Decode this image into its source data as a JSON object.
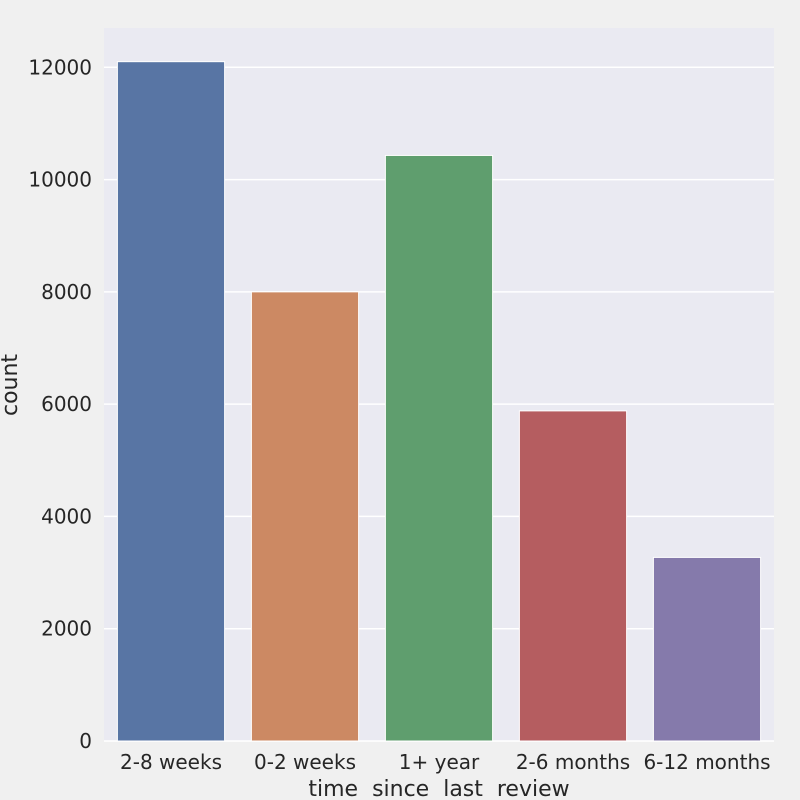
{
  "chart_data": {
    "type": "bar",
    "categories": [
      "2-8 weeks",
      "0-2 weeks",
      "1+ year",
      "2-6 months",
      "6-12 months"
    ],
    "values": [
      12100,
      8000,
      10430,
      5880,
      3270
    ],
    "xlabel": "time  since  last  review",
    "ylabel": "count",
    "ylim": [
      0,
      12700
    ],
    "yticks": [
      0,
      2000,
      4000,
      6000,
      8000,
      10000,
      12000
    ],
    "grid": true,
    "colors": [
      "#5875a4",
      "#cc8963",
      "#5f9e6e",
      "#b55d60",
      "#857aab"
    ],
    "background": "#eaeaf2",
    "page_background": "#f0f0f0",
    "grid_color": "#ffffff"
  }
}
